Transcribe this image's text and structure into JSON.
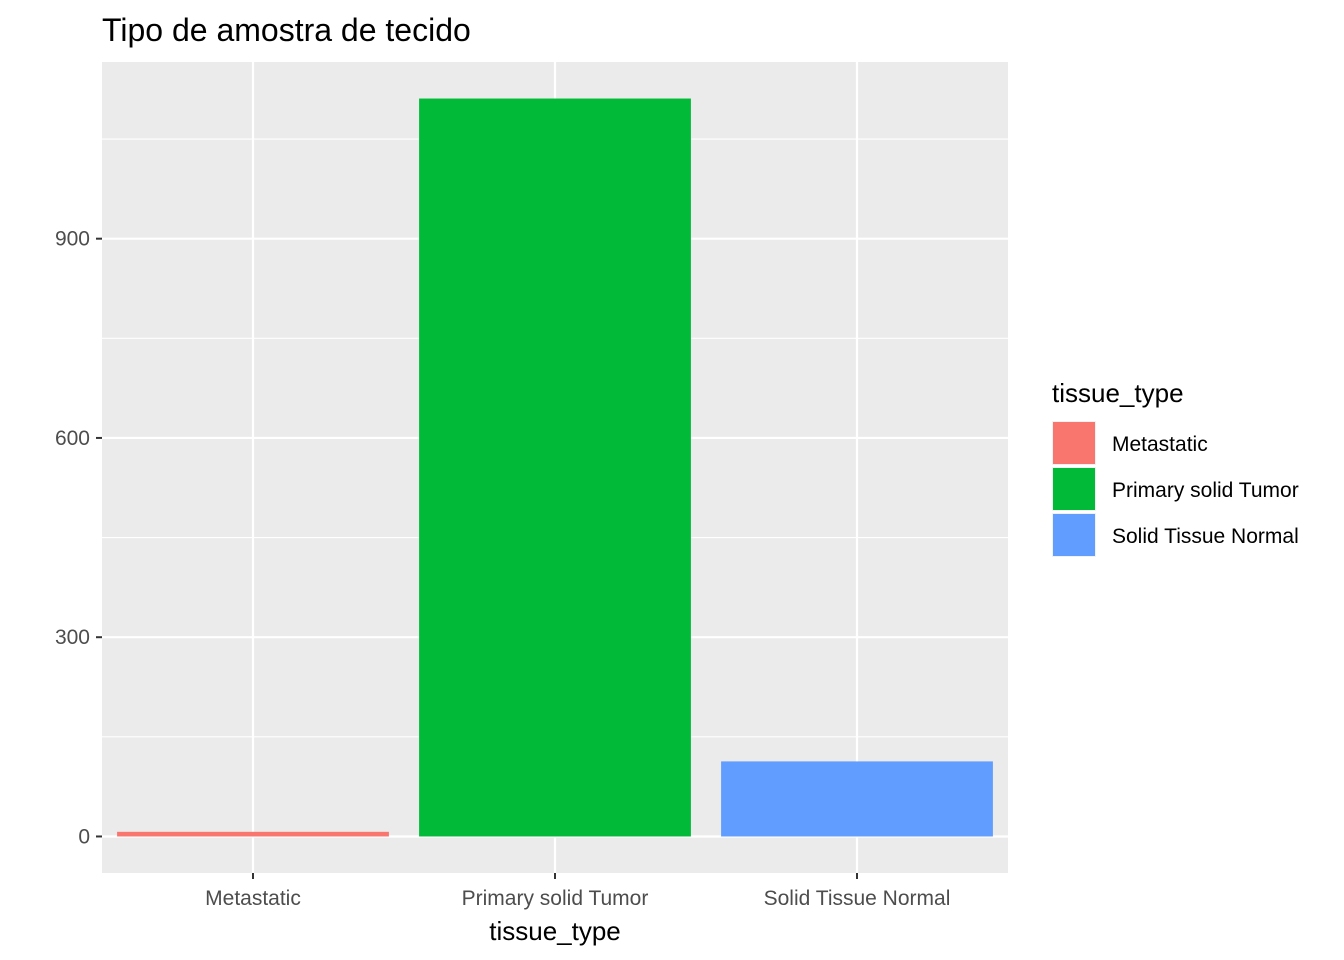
{
  "chart_data": {
    "type": "bar",
    "title": "Tipo de amostra de tecido",
    "xlabel": "tissue_type",
    "ylabel": "",
    "categories": [
      "Metastatic",
      "Primary solid Tumor",
      "Solid Tissue Normal"
    ],
    "values": [
      7,
      1111,
      113
    ],
    "colors": [
      "#F8766D",
      "#00BA38",
      "#619CFF"
    ],
    "ylim": [
      -55,
      1166
    ],
    "yticks": [
      0,
      300,
      600,
      900
    ],
    "yticks_minor": [
      150,
      450,
      750,
      1050
    ],
    "grid": true,
    "panel_background": "#EBEBEB",
    "gridline_color": "#FFFFFF",
    "legend": {
      "title": "tissue_type",
      "position": "right",
      "entries": [
        "Metastatic",
        "Primary solid Tumor",
        "Solid Tissue Normal"
      ]
    }
  }
}
